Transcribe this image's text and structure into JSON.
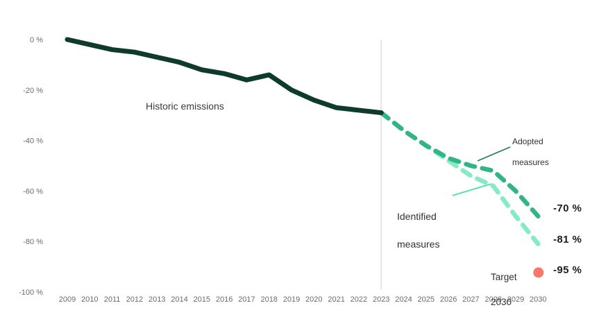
{
  "chart_data": {
    "type": "line",
    "title": "",
    "x_years": [
      2009,
      2010,
      2011,
      2012,
      2013,
      2014,
      2015,
      2016,
      2017,
      2018,
      2019,
      2020,
      2021,
      2022,
      2023,
      2024,
      2025,
      2026,
      2027,
      2028,
      2029,
      2030
    ],
    "y_axis": {
      "tick_labels": [
        "0 %",
        "-20 %",
        "-40 %",
        "-60 %",
        "-80 %",
        "-100 %"
      ],
      "tick_values": [
        0,
        -20,
        -40,
        -60,
        -80,
        -100
      ],
      "range": [
        -100,
        0
      ],
      "grid": false
    },
    "reference_line_year": 2023,
    "series": [
      {
        "name": "Identified measures",
        "style": "dashed",
        "color": "#85ebc4",
        "points": [
          [
            2023,
            -29
          ],
          [
            2024,
            -36
          ],
          [
            2025,
            -42
          ],
          [
            2026,
            -48
          ],
          [
            2027,
            -54
          ],
          [
            2028,
            -58
          ],
          [
            2029,
            -70
          ],
          [
            2030,
            -81
          ]
        ]
      },
      {
        "name": "Adopted measures",
        "style": "dashed",
        "color": "#31b583",
        "points": [
          [
            2023,
            -29
          ],
          [
            2024,
            -36
          ],
          [
            2025,
            -42
          ],
          [
            2026,
            -47
          ],
          [
            2027,
            -50
          ],
          [
            2028,
            -52
          ],
          [
            2029,
            -60
          ],
          [
            2030,
            -70
          ]
        ]
      },
      {
        "name": "Historic emissions",
        "style": "solid",
        "color": "#0f3a2e",
        "points": [
          [
            2009,
            0
          ],
          [
            2010,
            -2
          ],
          [
            2011,
            -4
          ],
          [
            2012,
            -5
          ],
          [
            2013,
            -7
          ],
          [
            2014,
            -9
          ],
          [
            2015,
            -12
          ],
          [
            2016,
            -13.5
          ],
          [
            2017,
            -16
          ],
          [
            2018,
            -14
          ],
          [
            2019,
            -20
          ],
          [
            2020,
            -24
          ],
          [
            2021,
            -27
          ],
          [
            2022,
            -28
          ],
          [
            2023,
            -29
          ]
        ]
      }
    ],
    "target_point": {
      "year": 2030,
      "value": -95,
      "color": "#f5796b"
    },
    "connector_colors": {
      "adopted": "#1e7d55",
      "identified": "#45e3a1"
    },
    "axis_text_color": "#6b6b6b",
    "reference_line_color": "#e5e5e5"
  },
  "annotations": {
    "historic_label": "Historic emissions",
    "adopted_line1": "Adopted",
    "adopted_line2": "measures",
    "identified_line1": "Identified",
    "identified_line2": "measures",
    "target_line1": "Target",
    "target_line2": "2030",
    "adopted_end_value": "-70 %",
    "identified_end_value": "-81 %",
    "target_end_value": "-95 %"
  }
}
